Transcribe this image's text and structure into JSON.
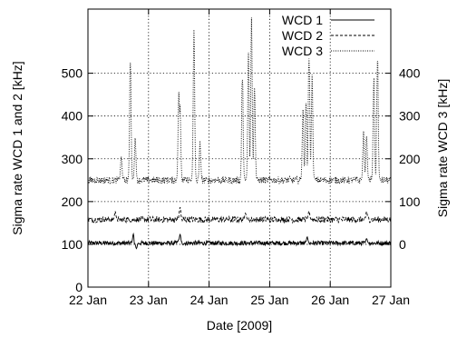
{
  "chart_data": {
    "type": "line",
    "xlabel": "Date [2009]",
    "ylabel_left": "Sigma rate WCD 1 and 2 [kHz]",
    "ylabel_right": "Sigma rate WCD 3 [kHz]",
    "x_tick_labels": [
      "22 Jan",
      "23 Jan",
      "24 Jan",
      "25 Jan",
      "26 Jan",
      "27 Jan"
    ],
    "xlim": [
      0,
      5
    ],
    "ylim_left": [
      0,
      650
    ],
    "ylim_right": [
      -100,
      550
    ],
    "y_ticks_left": [
      0,
      100,
      200,
      300,
      400,
      500
    ],
    "y_ticks_right": [
      0,
      100,
      200,
      300,
      400
    ],
    "grid": true,
    "legend_position": "top-right",
    "series": [
      {
        "name": "WCD 1",
        "axis": "left",
        "line_style": "solid",
        "baseline": 103,
        "noise": 5,
        "spikes": [
          {
            "x": 0.75,
            "y": 125
          },
          {
            "x": 0.8,
            "y": 90
          },
          {
            "x": 1.5,
            "y": 112
          },
          {
            "x": 1.52,
            "y": 125
          },
          {
            "x": 3.62,
            "y": 118
          },
          {
            "x": 4.6,
            "y": 115
          }
        ]
      },
      {
        "name": "WCD 2",
        "axis": "left",
        "line_style": "dashed",
        "baseline": 158,
        "noise": 7,
        "spikes": [
          {
            "x": 0.45,
            "y": 178
          },
          {
            "x": 1.52,
            "y": 190
          },
          {
            "x": 2.6,
            "y": 175
          },
          {
            "x": 3.65,
            "y": 180
          },
          {
            "x": 4.6,
            "y": 178
          }
        ]
      },
      {
        "name": "WCD 3",
        "axis": "right",
        "line_style": "dotted",
        "baseline": 150,
        "noise": 8,
        "spikes": [
          {
            "x": 0.55,
            "y": 210
          },
          {
            "x": 0.7,
            "y": 460
          },
          {
            "x": 0.78,
            "y": 260
          },
          {
            "x": 1.5,
            "y": 380
          },
          {
            "x": 1.52,
            "y": 340
          },
          {
            "x": 1.75,
            "y": 530
          },
          {
            "x": 1.85,
            "y": 245
          },
          {
            "x": 2.55,
            "y": 420
          },
          {
            "x": 2.65,
            "y": 470
          },
          {
            "x": 2.7,
            "y": 580
          },
          {
            "x": 2.75,
            "y": 400
          },
          {
            "x": 3.55,
            "y": 330
          },
          {
            "x": 3.6,
            "y": 350
          },
          {
            "x": 3.65,
            "y": 480
          },
          {
            "x": 3.7,
            "y": 410
          },
          {
            "x": 4.55,
            "y": 265
          },
          {
            "x": 4.6,
            "y": 265
          },
          {
            "x": 4.72,
            "y": 400
          },
          {
            "x": 4.78,
            "y": 460
          }
        ]
      }
    ]
  }
}
